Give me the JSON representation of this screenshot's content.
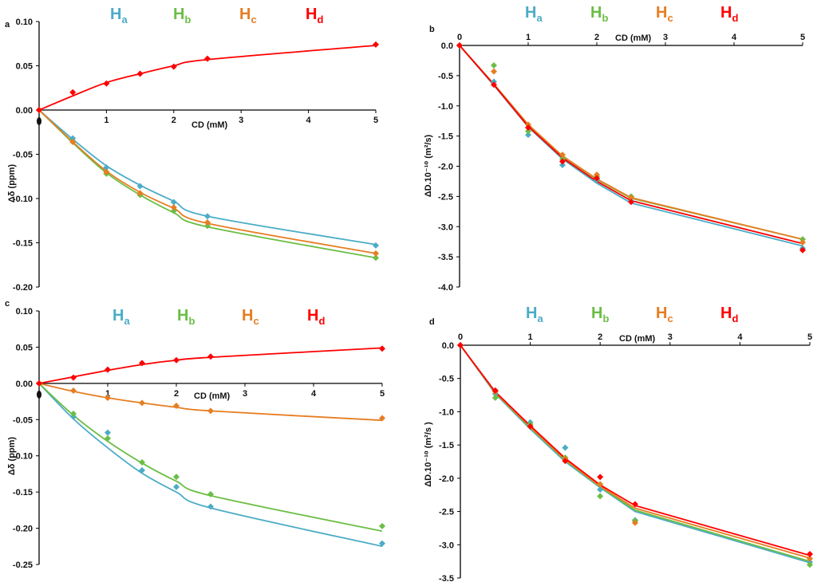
{
  "figure": {
    "legend": [
      {
        "main": "H",
        "sub": "a",
        "color": "#4BACC6"
      },
      {
        "main": "H",
        "sub": "b",
        "color": "#6BBE45"
      },
      {
        "main": "H",
        "sub": "c",
        "color": "#E67E22"
      },
      {
        "main": "H",
        "sub": "d",
        "color": "#FF0000"
      }
    ],
    "colors": {
      "Ha": "#4BACC6",
      "Hb": "#6BBE45",
      "Hc": "#E67E22",
      "Hd": "#FF0000",
      "axis": "#000000"
    }
  },
  "chart_data": [
    {
      "panel": "a",
      "type": "scatter",
      "xlabel": "CD (mM)",
      "ylabel": "Δδ (ppm)",
      "xlim": [
        0,
        5
      ],
      "ylim": [
        -0.2,
        0.1
      ],
      "xticks": [
        1,
        2,
        3,
        4,
        5
      ],
      "yticks": [
        0.1,
        0.05,
        0.0,
        -0.05,
        -0.1,
        -0.15,
        -0.2
      ],
      "ytick_labels": [
        "0.10",
        "0.05",
        "0.00",
        "-0.05",
        "-0.10",
        "-0.15",
        "-0.20"
      ],
      "fit": "curve",
      "series": [
        {
          "key": "Ha",
          "x": [
            0,
            0.5,
            1,
            1.5,
            2,
            2.5,
            5
          ],
          "y": [
            0,
            -0.032,
            -0.065,
            -0.086,
            -0.104,
            -0.12,
            -0.153
          ],
          "fit_y": [
            0,
            -0.033,
            -0.063,
            -0.085,
            -0.103,
            -0.12,
            -0.152
          ]
        },
        {
          "key": "Hb",
          "x": [
            0,
            0.5,
            1,
            1.5,
            2,
            2.5,
            5
          ],
          "y": [
            0,
            -0.036,
            -0.072,
            -0.096,
            -0.114,
            -0.131,
            -0.167
          ],
          "fit_y": [
            0,
            -0.037,
            -0.071,
            -0.096,
            -0.116,
            -0.132,
            -0.167
          ]
        },
        {
          "key": "Hc",
          "x": [
            0,
            0.5,
            1,
            1.5,
            2,
            2.5,
            5
          ],
          "y": [
            0,
            -0.036,
            -0.07,
            -0.094,
            -0.11,
            -0.127,
            -0.162
          ],
          "fit_y": [
            0,
            -0.036,
            -0.069,
            -0.093,
            -0.111,
            -0.128,
            -0.162
          ]
        },
        {
          "key": "Hd",
          "x": [
            0,
            0.5,
            1,
            1.5,
            2,
            2.5,
            5
          ],
          "y": [
            0,
            0.02,
            0.03,
            0.041,
            0.049,
            0.058,
            0.074
          ],
          "fit_y": [
            0,
            0.016,
            0.031,
            0.041,
            0.05,
            0.057,
            0.073
          ]
        }
      ]
    },
    {
      "panel": "b",
      "type": "scatter",
      "xlabel": "CD (mM)",
      "ylabel": "ΔD.10⁻¹⁰ (m²/s)",
      "xlim": [
        0,
        5
      ],
      "ylim": [
        -4.0,
        0.0
      ],
      "xticks": [
        0,
        1,
        2,
        3,
        4,
        5
      ],
      "yticks": [
        0.0,
        -0.5,
        -1.0,
        -1.5,
        -2.0,
        -2.5,
        -3.0,
        -3.5,
        -4.0
      ],
      "ytick_labels": [
        "0.0",
        "-0.5",
        "-1.0",
        "-1.5",
        "-2.0",
        "-2.5",
        "-3.0",
        "-3.5",
        "-4.0"
      ],
      "fit": "polyline",
      "series": [
        {
          "key": "Ha",
          "x": [
            0,
            0.5,
            1,
            1.5,
            2,
            2.5,
            5
          ],
          "y": [
            0,
            -0.6,
            -1.48,
            -1.98,
            -2.22,
            -2.58,
            -3.36
          ],
          "fit_y": [
            0,
            -0.66,
            -1.35,
            -1.88,
            -2.28,
            -2.61,
            -3.32
          ]
        },
        {
          "key": "Hb",
          "x": [
            0,
            0.5,
            1,
            1.5,
            2,
            2.5,
            5
          ],
          "y": [
            0,
            -0.33,
            -1.42,
            -1.88,
            -2.17,
            -2.5,
            -3.21
          ],
          "fit_y": [
            0,
            -0.64,
            -1.31,
            -1.83,
            -2.22,
            -2.53,
            -3.21
          ]
        },
        {
          "key": "Hc",
          "x": [
            0,
            0.5,
            1,
            1.5,
            2,
            2.5,
            5
          ],
          "y": [
            0,
            -0.43,
            -1.31,
            -1.81,
            -2.14,
            -2.52,
            -3.26
          ],
          "fit_y": [
            0,
            -0.64,
            -1.31,
            -1.83,
            -2.21,
            -2.52,
            -3.21
          ]
        },
        {
          "key": "Hd",
          "x": [
            0,
            0.5,
            1,
            1.5,
            2,
            2.5,
            5
          ],
          "y": [
            0,
            -0.65,
            -1.36,
            -1.92,
            -2.2,
            -2.59,
            -3.39
          ],
          "fit_y": [
            0,
            -0.65,
            -1.34,
            -1.86,
            -2.25,
            -2.57,
            -3.28
          ]
        }
      ]
    },
    {
      "panel": "c",
      "type": "scatter",
      "xlabel": "CD (mM)",
      "ylabel": "Δδ (ppm)",
      "xlim": [
        0,
        5
      ],
      "ylim": [
        -0.25,
        0.1
      ],
      "xticks": [
        1,
        2,
        3,
        4,
        5
      ],
      "yticks": [
        0.1,
        0.05,
        0.0,
        -0.05,
        -0.1,
        -0.15,
        -0.2,
        -0.25
      ],
      "ytick_labels": [
        "0.10",
        "0.05",
        "0.00",
        "-0.05",
        "-0.10",
        "-0.15",
        "-0.20",
        "-0.25"
      ],
      "fit": "curve",
      "series": [
        {
          "key": "Ha",
          "x": [
            0,
            0.5,
            1,
            1.5,
            2,
            2.5,
            5
          ],
          "y": [
            0,
            -0.046,
            -0.068,
            -0.12,
            -0.143,
            -0.17,
            -0.221
          ],
          "fit_y": [
            0,
            -0.049,
            -0.089,
            -0.124,
            -0.15,
            -0.172,
            -0.225
          ]
        },
        {
          "key": "Hb",
          "x": [
            0,
            0.5,
            1,
            1.5,
            2,
            2.5,
            5
          ],
          "y": [
            0,
            -0.042,
            -0.076,
            -0.109,
            -0.129,
            -0.153,
            -0.197
          ],
          "fit_y": [
            0,
            -0.044,
            -0.08,
            -0.11,
            -0.135,
            -0.155,
            -0.204
          ]
        },
        {
          "key": "Hc",
          "x": [
            0,
            0.5,
            1,
            1.5,
            2,
            2.5,
            5
          ],
          "y": [
            0,
            -0.01,
            -0.02,
            -0.027,
            -0.031,
            -0.038,
            -0.048
          ],
          "fit_y": [
            0,
            -0.011,
            -0.02,
            -0.027,
            -0.033,
            -0.038,
            -0.051
          ]
        },
        {
          "key": "Hd",
          "x": [
            0,
            0.5,
            1,
            1.5,
            2,
            2.5,
            5
          ],
          "y": [
            0,
            0.008,
            0.019,
            0.028,
            0.032,
            0.037,
            0.048
          ],
          "fit_y": [
            0,
            0.009,
            0.018,
            0.026,
            0.032,
            0.036,
            0.049
          ]
        }
      ]
    },
    {
      "panel": "d",
      "type": "scatter",
      "xlabel": "CD (mM)",
      "ylabel": "ΔD.10⁻¹⁰ (m²/s )",
      "xlim": [
        0,
        5
      ],
      "ylim": [
        -3.5,
        0.0
      ],
      "xticks": [
        0,
        1,
        2,
        3,
        4,
        5
      ],
      "yticks": [
        0.0,
        -0.5,
        -1.0,
        -1.5,
        -2.0,
        -2.5,
        -3.0,
        -3.5
      ],
      "ytick_labels": [
        "0.0",
        "-0.5",
        "-1.0",
        "-1.5",
        "-2.0",
        "-2.5",
        "-3.0",
        "-3.5"
      ],
      "fit": "polyline",
      "series": [
        {
          "key": "Ha",
          "x": [
            0,
            0.5,
            1,
            1.5,
            2,
            2.5,
            5
          ],
          "y": [
            0,
            -0.73,
            -1.16,
            -1.54,
            -2.17,
            -2.63,
            -3.26
          ],
          "fit_y": [
            0,
            -0.73,
            -1.26,
            -1.75,
            -2.14,
            -2.5,
            -3.27
          ]
        },
        {
          "key": "Hb",
          "x": [
            0,
            0.5,
            1,
            1.5,
            2,
            2.5,
            5
          ],
          "y": [
            0,
            -0.79,
            -1.19,
            -1.69,
            -2.27,
            -2.64,
            -3.3
          ],
          "fit_y": [
            0,
            -0.72,
            -1.24,
            -1.73,
            -2.13,
            -2.48,
            -3.25
          ]
        },
        {
          "key": "Hc",
          "x": [
            0,
            0.5,
            1,
            1.5,
            2,
            2.5,
            5
          ],
          "y": [
            0,
            -0.7,
            -1.22,
            -1.71,
            -2.09,
            -2.67,
            -3.21
          ],
          "fit_y": [
            0,
            -0.71,
            -1.23,
            -1.72,
            -2.12,
            -2.45,
            -3.2
          ]
        },
        {
          "key": "Hd",
          "x": [
            0,
            0.5,
            1,
            1.5,
            2,
            2.5,
            5
          ],
          "y": [
            0,
            -0.68,
            -1.22,
            -1.74,
            -1.98,
            -2.39,
            -3.14
          ],
          "fit_y": [
            0,
            -0.7,
            -1.21,
            -1.7,
            -2.1,
            -2.41,
            -3.16
          ]
        }
      ]
    }
  ]
}
